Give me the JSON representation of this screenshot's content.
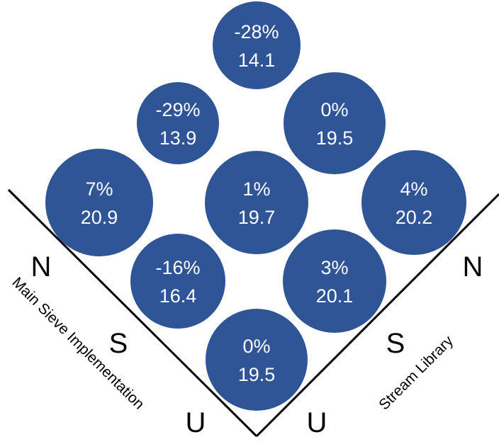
{
  "colors": {
    "circle_fill": "#2F5597",
    "circle_text": "#FFFFFF",
    "axis_line": "#000000"
  },
  "left_axis": {
    "title": "Main Sieve Implementation",
    "levels": [
      "N",
      "S",
      "U"
    ]
  },
  "right_axis": {
    "title": "Stream Library",
    "levels": [
      "N",
      "S",
      "U"
    ]
  },
  "cells": [
    {
      "main": "N",
      "stream": "N",
      "percent": "-28%",
      "value": "14.1"
    },
    {
      "main": "N",
      "stream": "S",
      "percent": "-29%",
      "value": "13.9"
    },
    {
      "main": "S",
      "stream": "N",
      "percent": "0%",
      "value": "19.5"
    },
    {
      "main": "N",
      "stream": "U",
      "percent": "7%",
      "value": "20.9"
    },
    {
      "main": "S",
      "stream": "S",
      "percent": "1%",
      "value": "19.7"
    },
    {
      "main": "U",
      "stream": "N",
      "percent": "4%",
      "value": "20.2"
    },
    {
      "main": "S",
      "stream": "U",
      "percent": "-16%",
      "value": "16.4"
    },
    {
      "main": "U",
      "stream": "S",
      "percent": "3%",
      "value": "20.1"
    },
    {
      "main": "U",
      "stream": "U",
      "percent": "0%",
      "value": "19.5"
    }
  ]
}
